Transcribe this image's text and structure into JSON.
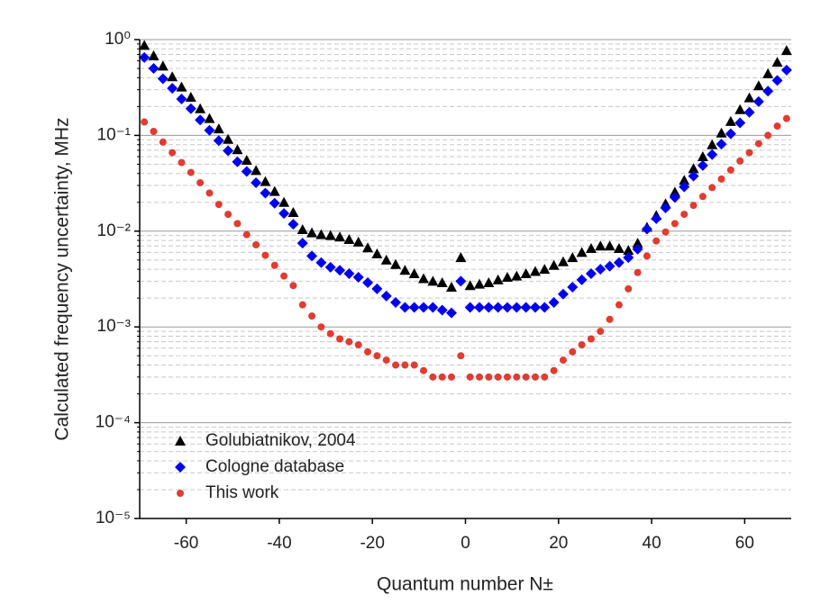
{
  "chart_data": {
    "type": "scatter",
    "x_label": "Quantum number N±",
    "y_label": "Calculated frequency uncertainty, MHz",
    "log_y": true,
    "grid": true,
    "legend": "lower left",
    "xlim": [
      -70,
      70
    ],
    "xticks": [
      -60,
      -40,
      -20,
      0,
      20,
      40,
      60
    ],
    "ylim": [
      1e-05,
      1
    ],
    "yticks": [
      {
        "value": 1e-05,
        "label": "10⁻⁵"
      },
      {
        "value": 0.0001,
        "label": "10⁻⁴"
      },
      {
        "value": 0.001,
        "label": "10⁻³"
      },
      {
        "value": 0.01,
        "label": "10⁻²"
      },
      {
        "value": 0.1,
        "label": "10⁻¹"
      },
      {
        "value": 1,
        "label": "10⁰"
      }
    ],
    "x": [
      -69,
      -67,
      -65,
      -63,
      -61,
      -59,
      -57,
      -55,
      -53,
      -51,
      -49,
      -47,
      -45,
      -43,
      -41,
      -39,
      -37,
      -35,
      -33,
      -31,
      -29,
      -27,
      -25,
      -23,
      -21,
      -19,
      -17,
      -15,
      -13,
      -11,
      -9,
      -7,
      -5,
      -3,
      -1,
      1,
      3,
      5,
      7,
      9,
      11,
      13,
      15,
      17,
      19,
      21,
      23,
      25,
      27,
      29,
      31,
      33,
      35,
      37,
      39,
      41,
      43,
      45,
      47,
      49,
      51,
      53,
      55,
      57,
      59,
      61,
      63,
      65,
      67,
      69
    ],
    "series": [
      {
        "name": "Golubiatnikov, 2004",
        "color": "#000000",
        "marker": "triangle",
        "values": [
          0.87,
          0.68,
          0.53,
          0.41,
          0.32,
          0.25,
          0.19,
          0.15,
          0.117,
          0.091,
          0.071,
          0.055,
          0.043,
          0.033,
          0.026,
          0.02,
          0.0157,
          0.0104,
          0.0096,
          0.0092,
          0.009,
          0.0087,
          0.0082,
          0.0077,
          0.0067,
          0.0058,
          0.005,
          0.0045,
          0.0039,
          0.0036,
          0.0032,
          0.003,
          0.0029,
          0.0026,
          0.0053,
          0.0027,
          0.0028,
          0.0029,
          0.0031,
          0.0033,
          0.0034,
          0.0036,
          0.0038,
          0.004,
          0.0044,
          0.0048,
          0.0053,
          0.006,
          0.0066,
          0.007,
          0.007,
          0.0066,
          0.0063,
          0.0075,
          0.011,
          0.0146,
          0.0193,
          0.0256,
          0.034,
          0.045,
          0.06,
          0.08,
          0.106,
          0.14,
          0.186,
          0.247,
          0.33,
          0.44,
          0.58,
          0.77
        ]
      },
      {
        "name": "Cologne database",
        "color": "#0000ee",
        "marker": "diamond",
        "values": [
          0.65,
          0.5,
          0.39,
          0.31,
          0.24,
          0.19,
          0.145,
          0.113,
          0.088,
          0.069,
          0.053,
          0.042,
          0.032,
          0.025,
          0.0196,
          0.0153,
          0.0118,
          0.0075,
          0.0055,
          0.0047,
          0.0042,
          0.0039,
          0.0036,
          0.0033,
          0.0029,
          0.0025,
          0.0021,
          0.0018,
          0.0016,
          0.0016,
          0.0016,
          0.0016,
          0.0015,
          0.0014,
          0.003,
          0.0016,
          0.0016,
          0.0016,
          0.0016,
          0.0016,
          0.0016,
          0.0016,
          0.0016,
          0.0016,
          0.0018,
          0.0022,
          0.0026,
          0.0031,
          0.0036,
          0.004,
          0.0043,
          0.0047,
          0.0053,
          0.0065,
          0.0105,
          0.0135,
          0.0175,
          0.0225,
          0.029,
          0.0376,
          0.0485,
          0.063,
          0.081,
          0.104,
          0.135,
          0.174,
          0.225,
          0.29,
          0.375,
          0.48
        ]
      },
      {
        "name": "This work",
        "color": "#e03c31",
        "marker": "circle",
        "values": [
          0.138,
          0.11,
          0.085,
          0.066,
          0.052,
          0.041,
          0.032,
          0.025,
          0.019,
          0.015,
          0.012,
          0.0092,
          0.0072,
          0.0056,
          0.0044,
          0.0034,
          0.0027,
          0.0017,
          0.0013,
          0.001,
          0.00085,
          0.00075,
          0.0007,
          0.00065,
          0.00055,
          0.0005,
          0.00045,
          0.0004,
          0.0004,
          0.0004,
          0.00035,
          0.0003,
          0.0003,
          0.0003,
          0.0005,
          0.0003,
          0.0003,
          0.0003,
          0.0003,
          0.0003,
          0.0003,
          0.0003,
          0.0003,
          0.0003,
          0.00035,
          0.00045,
          0.00055,
          0.00065,
          0.00075,
          0.0009,
          0.0012,
          0.0017,
          0.0025,
          0.0037,
          0.0055,
          0.0079,
          0.0098,
          0.012,
          0.015,
          0.0186,
          0.023,
          0.0285,
          0.035,
          0.0435,
          0.054,
          0.066,
          0.082,
          0.1,
          0.125,
          0.15
        ]
      }
    ]
  }
}
